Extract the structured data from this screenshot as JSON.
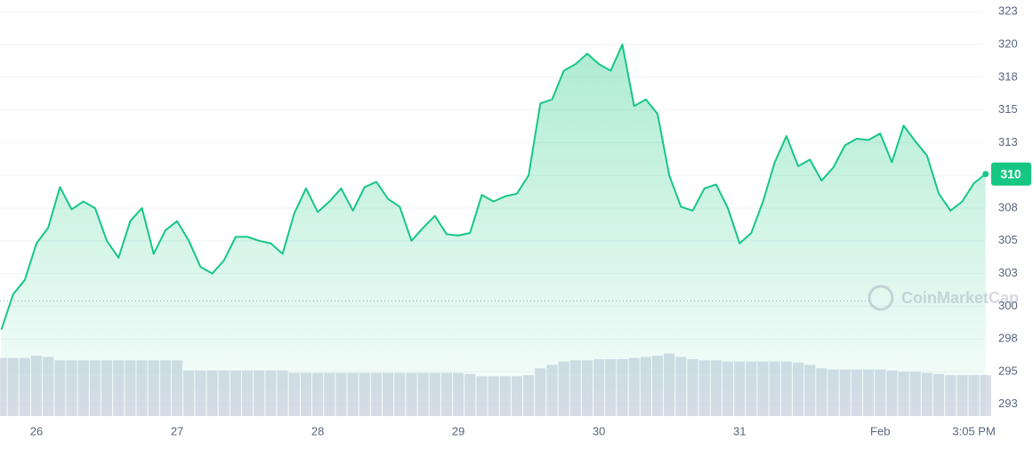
{
  "chart_data": {
    "type": "line",
    "categories": [
      null,
      null,
      null,
      "26",
      null,
      null,
      null,
      null,
      null,
      null,
      null,
      null,
      null,
      null,
      null,
      "27",
      null,
      null,
      null,
      null,
      null,
      null,
      null,
      null,
      null,
      null,
      null,
      "28",
      null,
      null,
      null,
      null,
      null,
      null,
      null,
      null,
      null,
      null,
      null,
      "29",
      null,
      null,
      null,
      null,
      null,
      null,
      null,
      null,
      null,
      null,
      null,
      "30",
      null,
      null,
      null,
      null,
      null,
      null,
      null,
      null,
      null,
      null,
      null,
      "31",
      null,
      null,
      null,
      null,
      null,
      null,
      null,
      null,
      null,
      null,
      null,
      "Feb",
      null,
      null,
      null,
      null,
      null,
      null,
      null,
      "3:05 PM",
      null
    ],
    "series": [
      {
        "colors": {
          "up": "#16c784",
          "down": "#ea3943"
        },
        "values": [
          298.2,
          300.9,
          302,
          304.8,
          306,
          309.1,
          307.4,
          308,
          307.5,
          305,
          303.7,
          306.5,
          307.5,
          304,
          305.8,
          306.5,
          305,
          303,
          302.5,
          303.5,
          305.3,
          305.3,
          305,
          304.8,
          304,
          307.1,
          309,
          307.2,
          308,
          309,
          307.3,
          309.1,
          309.5,
          308.2,
          307.6,
          305,
          306,
          306.9,
          305.5,
          305.4,
          305.6,
          308.5,
          308,
          308.4,
          308.6,
          310,
          315.5,
          315.8,
          318,
          318.5,
          319.3,
          318.5,
          318,
          320,
          315.3,
          315.8,
          314.7,
          310,
          307.6,
          307.3,
          309,
          309.3,
          307.5,
          304.8,
          305.6,
          308,
          311,
          313,
          310.7,
          311.2,
          309.6,
          310.6,
          312.3,
          312.8,
          312.7,
          313.2,
          311,
          313.8,
          312.6,
          311.5,
          308.6,
          307.3,
          308,
          309.4,
          310.1
        ]
      }
    ],
    "baseline": 300.4,
    "volume": {
      "color": "#cfd5e3",
      "y2lim": [
        0,
        100
      ],
      "values": [
        51,
        51,
        51,
        53,
        52,
        49,
        49,
        49,
        49,
        49,
        49,
        49,
        49,
        49,
        49,
        49,
        40,
        40,
        40,
        40,
        40,
        40,
        40,
        40,
        40,
        38,
        38,
        38,
        38,
        38,
        38,
        38,
        38,
        38,
        38,
        38,
        38,
        38,
        38,
        38,
        37,
        35,
        35,
        35,
        35,
        36,
        42,
        45,
        48,
        49,
        49,
        50,
        50,
        50,
        51,
        52,
        53,
        55,
        52,
        50,
        49,
        49,
        48,
        48,
        48,
        48,
        48,
        48,
        47,
        45,
        42,
        41,
        41,
        41,
        41,
        41,
        40,
        39,
        39,
        38,
        37,
        36,
        36,
        36,
        36
      ]
    },
    "ylim": [
      291.6,
      323.4
    ],
    "yticks": [
      {
        "value": 292.5,
        "label": "293"
      },
      {
        "value": 295,
        "label": "295"
      },
      {
        "value": 297.5,
        "label": "298"
      },
      {
        "value": 300,
        "label": "300"
      },
      {
        "value": 302.5,
        "label": "303"
      },
      {
        "value": 305,
        "label": "305"
      },
      {
        "value": 307.5,
        "label": "308"
      },
      {
        "value": 310,
        "label": "310"
      },
      {
        "value": 312.5,
        "label": "313"
      },
      {
        "value": 315,
        "label": "315"
      },
      {
        "value": 317.5,
        "label": "318"
      },
      {
        "value": 320,
        "label": "320"
      },
      {
        "value": 322.5,
        "label": "323"
      }
    ],
    "grid": true,
    "price_label": "310",
    "watermark": "CoinMarketCap"
  }
}
